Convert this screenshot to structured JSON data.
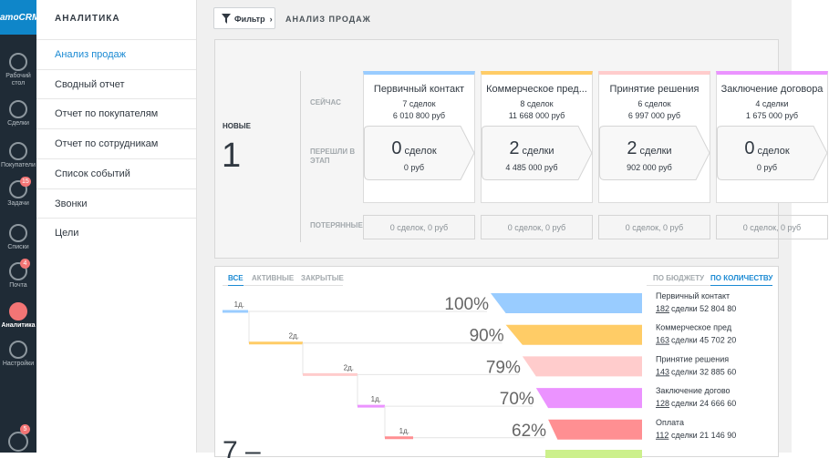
{
  "sidebar": {
    "logo": "amoCRM",
    "items": [
      {
        "label": "Рабочий стол"
      },
      {
        "label": "Сделки"
      },
      {
        "label": "Покупатели"
      },
      {
        "label": "Задачи",
        "badge": "15"
      },
      {
        "label": "Списки"
      },
      {
        "label": "Почта",
        "badge": "4"
      },
      {
        "label": "Аналитика"
      },
      {
        "label": "Настройки"
      }
    ],
    "chat_badge": "5"
  },
  "menu": {
    "title": "АНАЛИТИКА",
    "items": [
      "Анализ продаж",
      "Сводный отчет",
      "Отчет по покупателям",
      "Отчет по сотрудникам",
      "Список событий",
      "Звонки",
      "Цели"
    ]
  },
  "toolbar": {
    "filter": "Фильтр",
    "title": "АНАЛИЗ ПРОДАЖ"
  },
  "pipeline": {
    "new_label": "НОВЫЕ",
    "new_count": "1",
    "rows": [
      "СЕЙЧАС",
      "ПЕРЕШЛИ В ЭТАП",
      "ПОТЕРЯННЫЕ"
    ],
    "stages": [
      {
        "name": "Первичный контакт",
        "color": "#99ccff",
        "deals": "7 сделок",
        "sum": "6 010 800 руб",
        "moved_count": "0",
        "moved_word": "сделок",
        "moved_sum": "0 руб",
        "lost": "0 сделок, 0 руб"
      },
      {
        "name": "Коммерческое пред...",
        "color": "#ffcc66",
        "deals": "8 сделок",
        "sum": "11 668 000 руб",
        "moved_count": "2",
        "moved_word": "сделки",
        "moved_sum": "4 485 000 руб",
        "lost": "0 сделок, 0 руб"
      },
      {
        "name": "Принятие решения",
        "color": "#ffcccc",
        "deals": "6 сделок",
        "sum": "6 997 000 руб",
        "moved_count": "2",
        "moved_word": "сделки",
        "moved_sum": "902 000 руб",
        "lost": "0 сделок, 0 руб"
      },
      {
        "name": "Заключение договора",
        "color": "#eb93ff",
        "deals": "4 сделки",
        "sum": "1 675 000 руб",
        "moved_count": "0",
        "moved_word": "сделок",
        "moved_sum": "0 руб",
        "lost": "0 сделок, 0 руб"
      }
    ]
  },
  "funnel": {
    "tabs": [
      "ВСЕ",
      "АКТИВНЫЕ",
      "ЗАКРЫТЫЕ"
    ],
    "modes": [
      "ПО БЮДЖЕТУ",
      "ПО КОЛИЧЕСТВУ"
    ],
    "rows": [
      {
        "duration": "1д.",
        "percent": 100,
        "percent_label": "100%",
        "color": "#99ccff",
        "name": "Первичный контакт",
        "count": "182",
        "summary": "сделки 52 804 80"
      },
      {
        "duration": "2д.",
        "percent": 90,
        "percent_label": "90%",
        "color": "#ffcc66",
        "name": "Коммерческое пред",
        "count": "163",
        "summary": "сделки 45 702 20"
      },
      {
        "duration": "2д.",
        "percent": 79,
        "percent_label": "79%",
        "color": "#ffcccc",
        "name": "Принятие решения",
        "count": "143",
        "summary": "сделки 32 885 60"
      },
      {
        "duration": "1д.",
        "percent": 70,
        "percent_label": "70%",
        "color": "#eb93ff",
        "name": "Заключение догово",
        "count": "128",
        "summary": "сделки 24 666 60"
      },
      {
        "duration": "1д.",
        "percent": 62,
        "percent_label": "62%",
        "color": "#ff8f92",
        "name": "Оплата",
        "count": "112",
        "summary": "сделки 21 146 90"
      }
    ],
    "total": "7 –"
  }
}
